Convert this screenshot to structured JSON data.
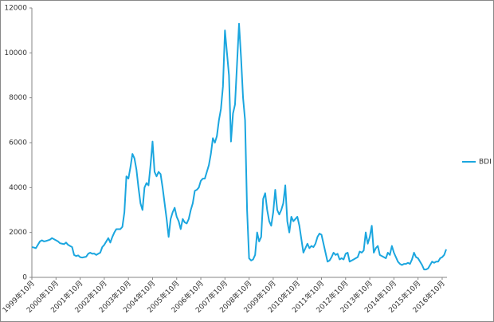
{
  "chart_data": {
    "type": "line",
    "categories": [
      "1999年10月",
      null,
      null,
      null,
      null,
      null,
      null,
      null,
      null,
      null,
      null,
      null,
      "2000年10月",
      null,
      null,
      null,
      null,
      null,
      null,
      null,
      null,
      null,
      null,
      null,
      "2001年10月",
      null,
      null,
      null,
      null,
      null,
      null,
      null,
      null,
      null,
      null,
      null,
      "2002年10月",
      null,
      null,
      null,
      null,
      null,
      null,
      null,
      null,
      null,
      null,
      null,
      "2003年10月",
      null,
      null,
      null,
      null,
      null,
      null,
      null,
      null,
      null,
      null,
      null,
      "2004年10月",
      null,
      null,
      null,
      null,
      null,
      null,
      null,
      null,
      null,
      null,
      null,
      "2005年10月",
      null,
      null,
      null,
      null,
      null,
      null,
      null,
      null,
      null,
      null,
      null,
      "2006年10月",
      null,
      null,
      null,
      null,
      null,
      null,
      null,
      null,
      null,
      null,
      null,
      "2007年10月",
      null,
      null,
      null,
      null,
      null,
      null,
      null,
      null,
      null,
      null,
      null,
      "2008年10月",
      null,
      null,
      null,
      null,
      null,
      null,
      null,
      null,
      null,
      null,
      null,
      "2009年10月",
      null,
      null,
      null,
      null,
      null,
      null,
      null,
      null,
      null,
      null,
      null,
      "2010年10月",
      null,
      null,
      null,
      null,
      null,
      null,
      null,
      null,
      null,
      null,
      null,
      "2011年10月",
      null,
      null,
      null,
      null,
      null,
      null,
      null,
      null,
      null,
      null,
      null,
      "2012年10月",
      null,
      null,
      null,
      null,
      null,
      null,
      null,
      null,
      null,
      null,
      null,
      "2013年10月",
      null,
      null,
      null,
      null,
      null,
      null,
      null,
      null,
      null,
      null,
      null,
      "2014年10月",
      null,
      null,
      null,
      null,
      null,
      null,
      null,
      null,
      null,
      null,
      null,
      "2015年10月",
      null,
      null,
      null,
      null,
      null,
      null,
      null,
      null,
      null,
      null,
      null,
      "2016年10月",
      null,
      null
    ],
    "series": [
      {
        "name": "BDI",
        "color": "#1ba6df",
        "values": [
          1350,
          1330,
          1300,
          1450,
          1600,
          1650,
          1600,
          1620,
          1650,
          1680,
          1750,
          1700,
          1650,
          1600,
          1520,
          1500,
          1480,
          1550,
          1450,
          1400,
          1350,
          1000,
          950,
          980,
          900,
          880,
          900,
          920,
          1050,
          1100,
          1050,
          1060,
          1000,
          1050,
          1100,
          1350,
          1450,
          1600,
          1750,
          1550,
          1800,
          2000,
          2150,
          2150,
          2150,
          2250,
          2900,
          4500,
          4400,
          4900,
          5500,
          5300,
          4800,
          4000,
          3300,
          3000,
          4000,
          4200,
          4100,
          5000,
          6050,
          4700,
          4500,
          4700,
          4600,
          4000,
          3300,
          2600,
          1800,
          2600,
          2900,
          3100,
          2700,
          2500,
          2150,
          2600,
          2450,
          2400,
          2600,
          3000,
          3300,
          3850,
          3900,
          4000,
          4300,
          4400,
          4400,
          4700,
          5000,
          5500,
          6200,
          6000,
          6300,
          7000,
          7500,
          8500,
          11000,
          10000,
          9000,
          6050,
          7300,
          7700,
          9500,
          11300,
          9800,
          8000,
          7000,
          3000,
          850,
          750,
          800,
          1000,
          2000,
          1600,
          1800,
          3500,
          3750,
          3000,
          2500,
          2300,
          2900,
          3900,
          3000,
          2800,
          3000,
          3300,
          4100,
          2500,
          2000,
          2700,
          2500,
          2600,
          2700,
          2300,
          1700,
          1100,
          1300,
          1500,
          1300,
          1400,
          1350,
          1500,
          1800,
          1950,
          1900,
          1500,
          1100,
          700,
          750,
          900,
          1100,
          1000,
          1050,
          800,
          850,
          800,
          1050,
          1100,
          700,
          750,
          800,
          850,
          900,
          1150,
          1100,
          1200,
          2000,
          1500,
          1800,
          2300,
          1100,
          1300,
          1400,
          1000,
          950,
          900,
          850,
          1100,
          1000,
          1400,
          1100,
          900,
          700,
          600,
          550,
          600,
          600,
          650,
          600,
          800,
          1100,
          900,
          850,
          700,
          550,
          350,
          350,
          400,
          550,
          700,
          650,
          700,
          700,
          850,
          900,
          1000,
          1250
        ]
      }
    ],
    "ylim": [
      0,
      12000
    ],
    "yticks": [
      0,
      2000,
      4000,
      6000,
      8000,
      10000,
      12000
    ],
    "grid": false,
    "legend": "right"
  }
}
